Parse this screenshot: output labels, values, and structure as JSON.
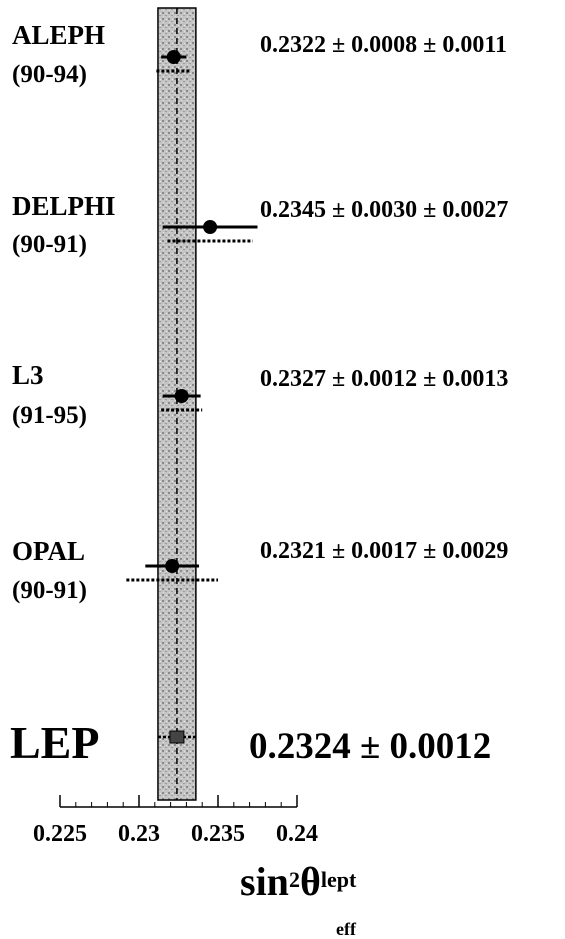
{
  "chart_data": {
    "type": "scatter",
    "title": "",
    "xlabel": "sin²θ_eff^lept",
    "xlabel_parts": {
      "main": "sin",
      "sup1": "2",
      "theta": "θ",
      "sup2": "lept",
      "sub": "eff"
    },
    "xlim": [
      0.225,
      0.24
    ],
    "xticks": [
      "0.225",
      "0.23",
      "0.235",
      "0.24"
    ],
    "xtick_values": [
      0.225,
      0.23,
      0.235,
      0.24
    ],
    "experiments": [
      {
        "name": "ALEPH",
        "period": "(90-94)",
        "value": 0.2322,
        "stat": 0.0008,
        "syst": 0.0011,
        "label": "0.2322 ± 0.0008 ± 0.0011"
      },
      {
        "name": "DELPHI",
        "period": "(90-91)",
        "value": 0.2345,
        "stat": 0.003,
        "syst": 0.0027,
        "label": "0.2345 ± 0.0030 ± 0.0027"
      },
      {
        "name": "L3",
        "period": "(91-95)",
        "value": 0.2327,
        "stat": 0.0012,
        "syst": 0.0013,
        "label": "0.2327 ± 0.0012 ± 0.0013"
      },
      {
        "name": "OPAL",
        "period": "(90-91)",
        "value": 0.2321,
        "stat": 0.0017,
        "syst": 0.0029,
        "label": "0.2321 ± 0.0017 ± 0.0029"
      }
    ],
    "combined": {
      "name": "LEP",
      "value": 0.2324,
      "error": 0.0012,
      "label": "0.2324 ± 0.0012"
    },
    "band_color": "#b8b8b8",
    "marker_color": "#000000"
  }
}
